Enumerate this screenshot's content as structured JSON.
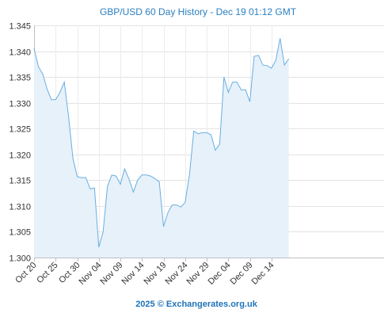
{
  "chart_data": {
    "type": "area",
    "title": "GBP/USD 60 Day History - Dec 19 01:12 GMT",
    "footer": "2025 © Exchangerates.org.uk",
    "xlabel": "",
    "ylabel": "",
    "ylim": [
      1.3,
      1.345
    ],
    "y_ticks": [
      "1.300",
      "1.305",
      "1.310",
      "1.315",
      "1.320",
      "1.325",
      "1.330",
      "1.335",
      "1.340",
      "1.345"
    ],
    "x_ticks": [
      "Oct 20",
      "Oct 25",
      "Oct 30",
      "Nov 04",
      "Nov 09",
      "Nov 14",
      "Nov 19",
      "Nov 24",
      "Nov 29",
      "Dec 04",
      "Dec 09",
      "Dec 14"
    ],
    "grid": true,
    "colors": {
      "line": "#6aaee0",
      "fill": "#e6f1fa"
    },
    "series": [
      {
        "x": [
          "Oct 20",
          "Oct 21",
          "Oct 22",
          "Oct 23",
          "Oct 24",
          "Oct 25",
          "Oct 26",
          "Oct 27",
          "Oct 28",
          "Oct 29",
          "Oct 30",
          "Oct 31",
          "Nov 01",
          "Nov 02",
          "Nov 03",
          "Nov 04",
          "Nov 05",
          "Nov 06",
          "Nov 07",
          "Nov 08",
          "Nov 09",
          "Nov 10",
          "Nov 11",
          "Nov 12",
          "Nov 13",
          "Nov 14",
          "Nov 15",
          "Nov 16",
          "Nov 17",
          "Nov 18",
          "Nov 19",
          "Nov 20",
          "Nov 21",
          "Nov 22",
          "Nov 23",
          "Nov 24",
          "Nov 25",
          "Nov 26",
          "Nov 27",
          "Nov 28",
          "Nov 29",
          "Nov 30",
          "Dec 01",
          "Dec 02",
          "Dec 03",
          "Dec 04",
          "Dec 05",
          "Dec 06",
          "Dec 07",
          "Dec 08",
          "Dec 09",
          "Dec 10",
          "Dec 11",
          "Dec 12",
          "Dec 13",
          "Dec 14",
          "Dec 15",
          "Dec 16",
          "Dec 17",
          "Dec 18"
        ],
        "values": [
          1.3405,
          1.337,
          1.3356,
          1.3327,
          1.3306,
          1.3306,
          1.332,
          1.334,
          1.3273,
          1.3192,
          1.3157,
          1.3155,
          1.3155,
          1.3133,
          1.3135,
          1.302,
          1.305,
          1.3138,
          1.316,
          1.3158,
          1.3142,
          1.3172,
          1.3152,
          1.3127,
          1.315,
          1.316,
          1.316,
          1.3158,
          1.3153,
          1.3147,
          1.306,
          1.3087,
          1.3102,
          1.3102,
          1.3098,
          1.3107,
          1.316,
          1.3245,
          1.324,
          1.3242,
          1.3242,
          1.3238,
          1.3208,
          1.322,
          1.335,
          1.332,
          1.334,
          1.334,
          1.3325,
          1.3325,
          1.3302,
          1.339,
          1.3392,
          1.3373,
          1.3372,
          1.3367,
          1.3382,
          1.3425,
          1.3373,
          1.3385
        ]
      }
    ]
  }
}
